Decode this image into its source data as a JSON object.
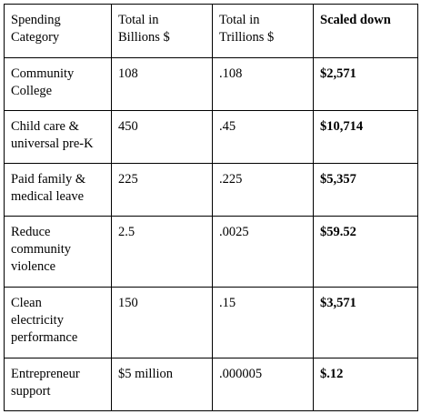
{
  "table": {
    "headers": [
      "Spending\nCategory",
      "Total in\nBillions $",
      "Total in\nTrillions $",
      "Scaled down"
    ],
    "rows": [
      [
        "Community\nCollege",
        "108",
        ".108",
        "$2,571"
      ],
      [
        "Child care &\nuniversal pre-K",
        "450",
        ".45",
        "$10,714"
      ],
      [
        "Paid family &\nmedical leave",
        "225",
        ".225",
        "$5,357"
      ],
      [
        "Reduce\ncommunity\nviolence",
        "2.5",
        ".0025",
        "$59.52"
      ],
      [
        "Clean\nelectricity\nperformance",
        "150",
        ".15",
        "$3,571"
      ],
      [
        "Entrepreneur\nsupport",
        "$5 million",
        ".000005",
        "$.12"
      ]
    ]
  }
}
